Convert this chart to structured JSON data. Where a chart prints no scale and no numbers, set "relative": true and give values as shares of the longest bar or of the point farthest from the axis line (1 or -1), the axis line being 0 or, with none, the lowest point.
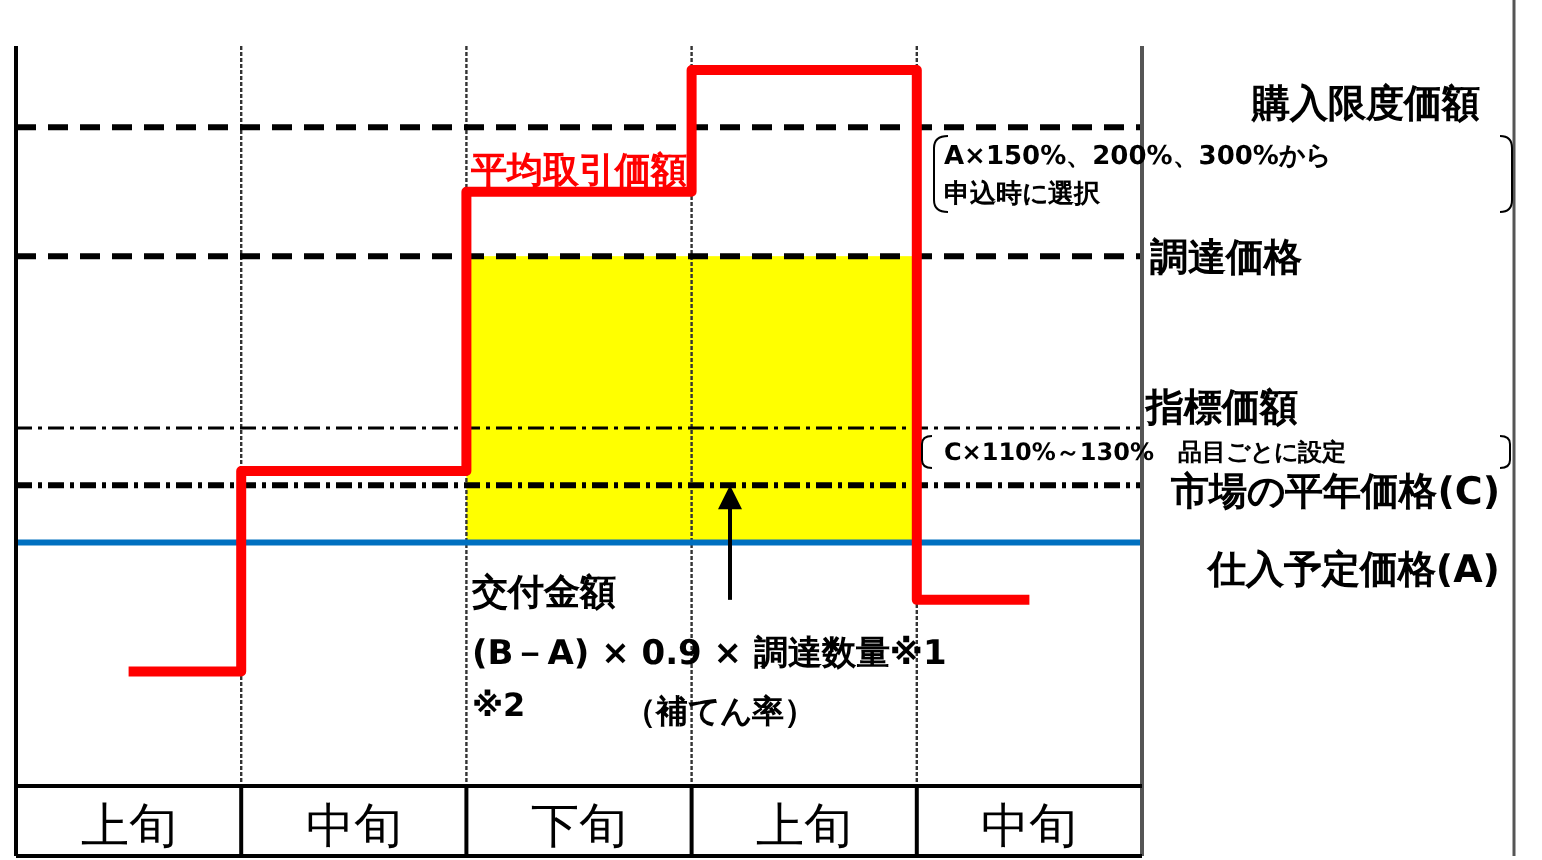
{
  "chart_data": {
    "type": "step",
    "relative": true,
    "categories": [
      "上旬",
      "中旬",
      "下旬",
      "上旬",
      "中旬"
    ],
    "series": [
      {
        "name": "平均取引価額",
        "color": "#ff0000",
        "values": [
          0.16,
          0.44,
          0.83,
          1,
          0.26
        ]
      }
    ],
    "ref_lines": [
      {
        "axis": "y",
        "value": 0.92,
        "label": "購入限度価額",
        "color": "#000000",
        "line_style": "dashed"
      },
      {
        "axis": "y",
        "value": 0.74,
        "label": "調達価格",
        "color": "#000000",
        "line_style": "dashed"
      },
      {
        "axis": "y",
        "value": 0.5,
        "label": "指標価額",
        "color": "#000000",
        "line_style": "dotted"
      },
      {
        "axis": "y",
        "value": 0.42,
        "label": "市場の平年価格(C)",
        "color": "#000000",
        "line_style": "dotted"
      },
      {
        "axis": "y",
        "value": 0.34,
        "label": "仕入予定価格(A)",
        "color": "#0070c0",
        "line_style": "solid"
      }
    ],
    "bands": [
      {
        "axis": "y",
        "from": 0.34,
        "to": 0.74,
        "color": "#ffff00"
      }
    ],
    "annotations": [
      "A×150%、200%、300%から申込時に選択",
      "C×110%～130%　品目ごとに設定",
      "交付金額",
      "(B－A) × 0.9 × 調達数量※1",
      "※2",
      "（補てん率）"
    ],
    "grid": "x",
    "legend": false,
    "tick_labels": "x"
  }
}
